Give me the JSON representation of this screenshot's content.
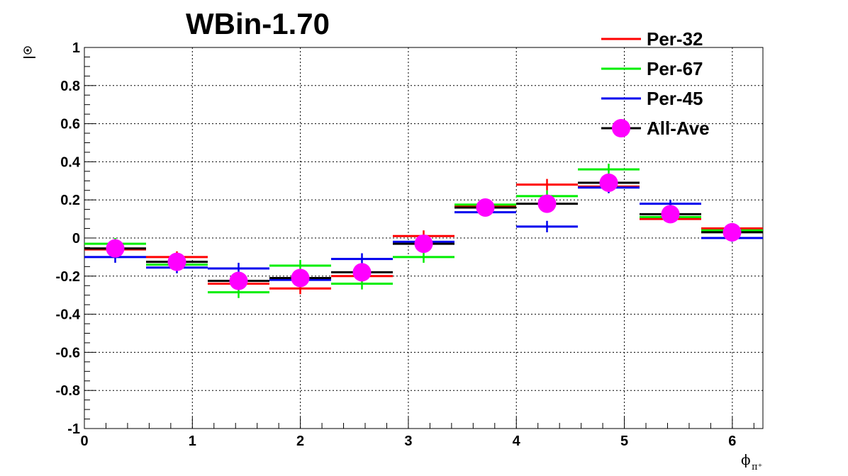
{
  "chart_data": {
    "type": "scatter",
    "title": "WBin-1.70",
    "xlabel": "ϕ",
    "xlabel_sub": "π⁺",
    "ylabel": "",
    "xlim": [
      0,
      6.2832
    ],
    "ylim": [
      -1,
      1
    ],
    "grid": true,
    "x_ticks": [
      "0",
      "1",
      "2",
      "3",
      "4",
      "5",
      "6"
    ],
    "y_ticks": [
      "-1",
      "-0.8",
      "-0.6",
      "-0.4",
      "-0.2",
      "0",
      "0.2",
      "0.4",
      "0.6",
      "0.8",
      "1"
    ],
    "legend_position": "top-right",
    "bins": [
      {
        "lo": 0.0,
        "hi": 0.5712
      },
      {
        "lo": 0.5712,
        "hi": 1.1424
      },
      {
        "lo": 1.1424,
        "hi": 1.7136
      },
      {
        "lo": 1.7136,
        "hi": 2.2848
      },
      {
        "lo": 2.2848,
        "hi": 2.856
      },
      {
        "lo": 2.856,
        "hi": 3.4272
      },
      {
        "lo": 3.4272,
        "hi": 3.9984
      },
      {
        "lo": 3.9984,
        "hi": 4.5696
      },
      {
        "lo": 4.5696,
        "hi": 5.1408
      },
      {
        "lo": 5.1408,
        "hi": 5.712
      },
      {
        "lo": 5.712,
        "hi": 6.2832
      }
    ],
    "series": [
      {
        "name": "Per-32",
        "color": "#ff0000",
        "style": "histogram",
        "values": [
          -0.06,
          -0.1,
          -0.24,
          -0.265,
          -0.2,
          0.01,
          0.17,
          0.28,
          0.27,
          0.1,
          0.05
        ],
        "errors": [
          0.03,
          0.03,
          0.03,
          0.03,
          0.03,
          0.03,
          0.02,
          0.03,
          0.03,
          0.02,
          0.02
        ]
      },
      {
        "name": "Per-67",
        "color": "#00ee00",
        "style": "histogram",
        "values": [
          -0.03,
          -0.14,
          -0.285,
          -0.145,
          -0.24,
          -0.1,
          0.175,
          0.22,
          0.36,
          0.11,
          0.04
        ],
        "errors": [
          0.03,
          0.03,
          0.03,
          0.03,
          0.03,
          0.03,
          0.02,
          0.03,
          0.03,
          0.02,
          0.02
        ]
      },
      {
        "name": "Per-45",
        "color": "#0000ee",
        "style": "histogram",
        "values": [
          -0.1,
          -0.155,
          -0.16,
          -0.22,
          -0.11,
          -0.02,
          0.135,
          0.06,
          0.265,
          0.18,
          0.0
        ],
        "errors": [
          0.03,
          0.03,
          0.03,
          0.03,
          0.03,
          0.03,
          0.02,
          0.03,
          0.03,
          0.02,
          0.02
        ]
      },
      {
        "name": "All-Ave",
        "color": "#ff00ff",
        "line_color": "#000000",
        "style": "marker",
        "values": [
          -0.055,
          -0.125,
          -0.225,
          -0.21,
          -0.18,
          -0.03,
          0.16,
          0.18,
          0.29,
          0.125,
          0.03
        ],
        "errors": [
          0.02,
          0.02,
          0.02,
          0.02,
          0.02,
          0.02,
          0.02,
          0.02,
          0.02,
          0.02,
          0.02
        ]
      }
    ]
  }
}
